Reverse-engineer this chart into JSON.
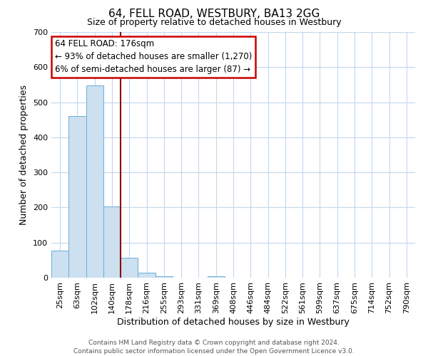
{
  "title": "64, FELL ROAD, WESTBURY, BA13 2GG",
  "subtitle": "Size of property relative to detached houses in Westbury",
  "xlabel": "Distribution of detached houses by size in Westbury",
  "ylabel": "Number of detached properties",
  "bar_labels": [
    "25sqm",
    "63sqm",
    "102sqm",
    "140sqm",
    "178sqm",
    "216sqm",
    "255sqm",
    "293sqm",
    "331sqm",
    "369sqm",
    "408sqm",
    "446sqm",
    "484sqm",
    "522sqm",
    "561sqm",
    "599sqm",
    "637sqm",
    "675sqm",
    "714sqm",
    "752sqm",
    "790sqm"
  ],
  "bar_heights": [
    78,
    460,
    548,
    202,
    57,
    15,
    5,
    0,
    0,
    5,
    0,
    0,
    0,
    0,
    0,
    0,
    0,
    0,
    0,
    0,
    0
  ],
  "bar_color": "#cce0f0",
  "bar_edge_color": "#6aafd6",
  "vline_x_index": 4,
  "vline_color": "#8b0000",
  "annotation_title": "64 FELL ROAD: 176sqm",
  "annotation_line1": "← 93% of detached houses are smaller (1,270)",
  "annotation_line2": "6% of semi-detached houses are larger (87) →",
  "annotation_box_color": "#ffffff",
  "annotation_box_edge": "#cc0000",
  "ylim": [
    0,
    700
  ],
  "yticks": [
    0,
    100,
    200,
    300,
    400,
    500,
    600,
    700
  ],
  "footer1": "Contains HM Land Registry data © Crown copyright and database right 2024.",
  "footer2": "Contains public sector information licensed under the Open Government Licence v3.0.",
  "bg_color": "#ffffff",
  "grid_color": "#c0d8ee",
  "title_fontsize": 11,
  "subtitle_fontsize": 9,
  "xlabel_fontsize": 9,
  "ylabel_fontsize": 9,
  "tick_fontsize": 8,
  "footer_fontsize": 6.5,
  "annotation_fontsize": 8.5
}
